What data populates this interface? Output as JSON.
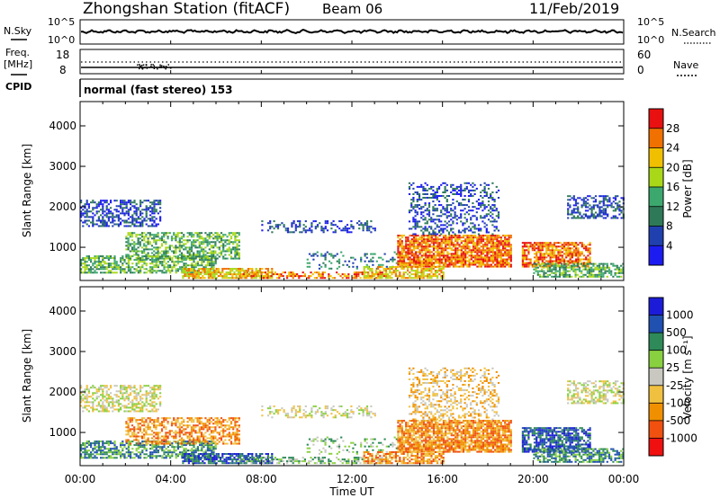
{
  "header": {
    "title": "Zhongshan Station (fitACF)",
    "beam": "Beam 06",
    "date": "11/Feb/2019"
  },
  "strip": {
    "nsky_label": "N.Sky",
    "nsky_hi": "10^5",
    "nsky_lo": "10^0",
    "nsearch_label": "N.Search",
    "nsearch_hi": "10^5",
    "nsearch_lo": "10^0",
    "freq_label_1": "Freq.",
    "freq_label_2": "[MHz]",
    "freq_hi": "18",
    "freq_lo": "8",
    "nave_label": "Nave",
    "nave_hi": "60",
    "nave_lo": "0",
    "cpid_label": "CPID",
    "mode_text": "normal (fast stereo) 153"
  },
  "colors": {
    "power": [
      "#1c1cf0",
      "#2040b0",
      "#2e7a58",
      "#3ca86e",
      "#a8d818",
      "#f0c000",
      "#f07000",
      "#e81010"
    ],
    "velocity": [
      "#f01010",
      "#f05010",
      "#f09000",
      "#f0c040",
      "#c8c8c0",
      "#88d040",
      "#2e8a58",
      "#2050b0",
      "#1c1cd8"
    ]
  },
  "chart_data": [
    {
      "type": "heatmap",
      "name": "power-panel",
      "ylabel": "Slant Range [km]",
      "xlabel": "Time UT",
      "x_ticks": [
        "00:00",
        "04:00",
        "08:00",
        "12:00",
        "16:00",
        "20:00",
        "00:00"
      ],
      "y_ticks": [
        1000,
        2000,
        3000,
        4000
      ],
      "ylim": [
        180,
        4600
      ],
      "xlim_hours": [
        0,
        24
      ],
      "colorbar": {
        "label": "Power [dB]",
        "ticks": [
          "4",
          "8",
          "12",
          "16",
          "20",
          "24",
          "28"
        ],
        "range": [
          0,
          30
        ]
      }
    },
    {
      "type": "heatmap",
      "name": "velocity-panel",
      "ylabel": "Slant Range [km]",
      "xlabel": "Time UT",
      "x_ticks": [
        "00:00",
        "04:00",
        "08:00",
        "12:00",
        "16:00",
        "20:00",
        "00:00"
      ],
      "y_ticks": [
        1000,
        2000,
        3000,
        4000
      ],
      "ylim": [
        180,
        4600
      ],
      "xlim_hours": [
        0,
        24
      ],
      "colorbar": {
        "label": "Velocity [m s⁻¹]",
        "ticks": [
          "-1000",
          "-500",
          "-100",
          "-25",
          "25",
          "100",
          "500",
          "1000"
        ]
      }
    }
  ]
}
